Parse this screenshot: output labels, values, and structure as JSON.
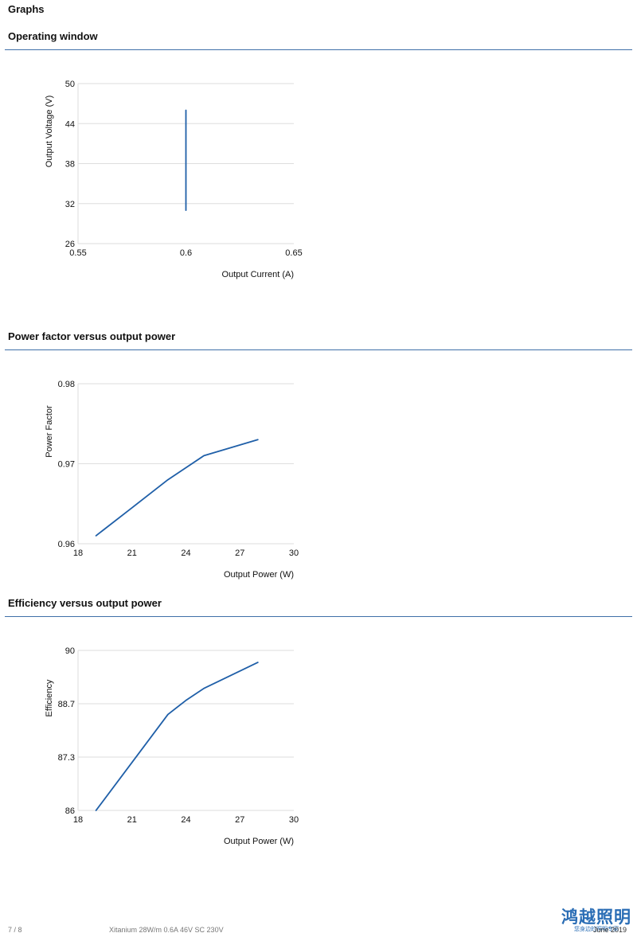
{
  "page_title": "Graphs",
  "sections": [
    {
      "title": "Operating window"
    },
    {
      "title": "Power factor versus output power"
    },
    {
      "title": "Efficiency versus output power"
    }
  ],
  "chart_data": [
    {
      "type": "line",
      "title": "",
      "xlabel": "Output Current (A)",
      "ylabel": "Output Voltage (V)",
      "xlim": [
        0.55,
        0.65
      ],
      "ylim": [
        26,
        50
      ],
      "xticks": [
        "0.55",
        "0.6",
        "0.65"
      ],
      "yticks": [
        "50",
        "44",
        "38",
        "32",
        "26"
      ],
      "xtick_values": [
        0.55,
        0.6,
        0.65
      ],
      "ytick_values": [
        50,
        44,
        38,
        32,
        26
      ],
      "grid": true,
      "color": "#1f5fa8",
      "series": [
        {
          "x": [
            0.6,
            0.6
          ],
          "y": [
            31,
            46
          ]
        }
      ]
    },
    {
      "type": "line",
      "title": "",
      "xlabel": "Output Power (W)",
      "ylabel": "Power Factor",
      "xlim": [
        18,
        30
      ],
      "ylim": [
        0.96,
        0.98
      ],
      "xticks": [
        "18",
        "21",
        "24",
        "27",
        "30"
      ],
      "yticks": [
        "0.98",
        "0.97",
        "0.96"
      ],
      "xtick_values": [
        18,
        21,
        24,
        27,
        30
      ],
      "ytick_values": [
        0.98,
        0.97,
        0.96
      ],
      "grid": true,
      "color": "#1f5fa8",
      "series": [
        {
          "x": [
            19,
            21,
            23,
            24,
            25,
            28
          ],
          "y": [
            0.961,
            0.9645,
            0.968,
            0.9695,
            0.971,
            0.973
          ]
        }
      ]
    },
    {
      "type": "line",
      "title": "",
      "xlabel": "Output Power (W)",
      "ylabel": "Efficiency",
      "xlim": [
        18,
        30
      ],
      "ylim": [
        86,
        90
      ],
      "xticks": [
        "18",
        "21",
        "24",
        "27",
        "30"
      ],
      "yticks": [
        "90",
        "88.7",
        "87.3",
        "86"
      ],
      "xtick_values": [
        18,
        21,
        24,
        27,
        30
      ],
      "ytick_values": [
        90,
        88.667,
        87.333,
        86
      ],
      "grid": true,
      "color": "#1f5fa8",
      "series": [
        {
          "x": [
            19,
            21,
            23,
            24,
            25,
            28
          ],
          "y": [
            86,
            87.2,
            88.4,
            88.75,
            89.05,
            89.7
          ]
        }
      ]
    }
  ],
  "footer": {
    "page_number": "7 / 8",
    "product": "Xitanium 28W/m 0.6A 46V SC 230V",
    "date": "June 2019"
  },
  "brand": {
    "name": "鸿越照明",
    "tagline": "您身边的照明专家"
  }
}
